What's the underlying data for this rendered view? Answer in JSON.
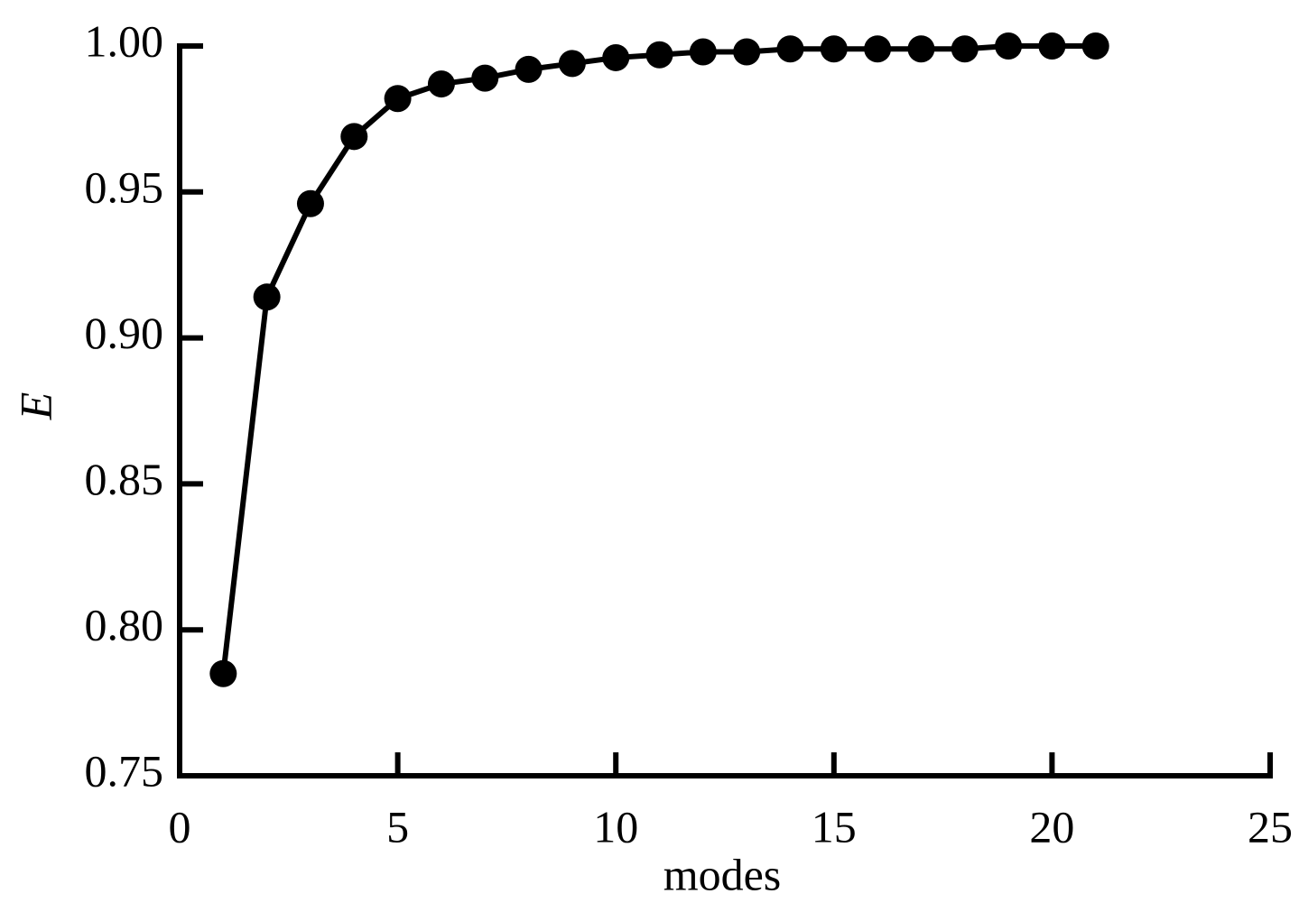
{
  "chart_data": {
    "type": "line",
    "x": [
      1,
      2,
      3,
      4,
      5,
      6,
      7,
      8,
      9,
      10,
      11,
      12,
      13,
      14,
      15,
      16,
      17,
      18,
      19,
      20,
      21
    ],
    "values": [
      0.785,
      0.914,
      0.946,
      0.969,
      0.982,
      0.987,
      0.989,
      0.992,
      0.994,
      0.996,
      0.997,
      0.998,
      0.998,
      0.999,
      0.999,
      0.999,
      0.999,
      0.999,
      1.0,
      1.0,
      1.0
    ],
    "color": "#000000",
    "xlabel": "modes",
    "ylabel": "E",
    "xlim": [
      0,
      25
    ],
    "xticks": [
      0,
      5,
      10,
      15,
      20,
      25
    ],
    "ylim": [
      0.75,
      1.0
    ],
    "yticks": [
      {
        "value": 0.75,
        "label": "0.75"
      },
      {
        "value": 0.8,
        "label": "0.80"
      },
      0.85,
      {
        "value": 0.9,
        "label": "0.90"
      },
      0.95,
      {
        "value": 1.0,
        "label": "1.00"
      }
    ],
    "grid": false
  }
}
